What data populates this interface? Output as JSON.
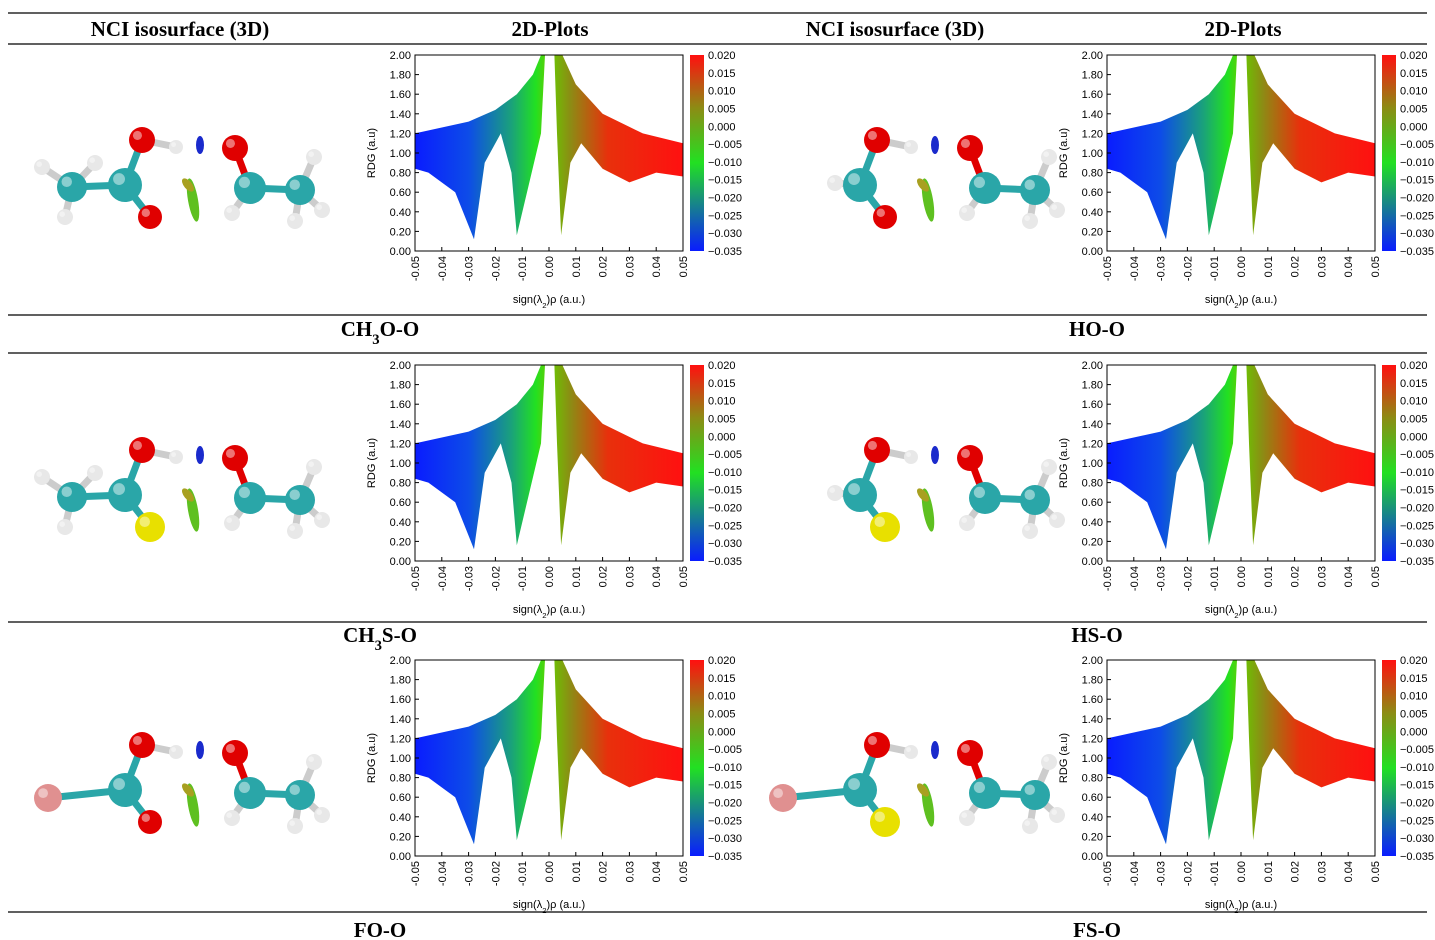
{
  "header": [
    "NCI isosurface (3D)",
    "2D-Plots",
    "NCI isosurface (3D)",
    "2D-Plots"
  ],
  "axes": {
    "ylabel": "RDG (a.u)",
    "xlabel": [
      {
        "text": "sign(λ"
      },
      {
        "text": "2",
        "sub": true
      },
      {
        "text": ")ρ (a.u.)"
      }
    ],
    "yticks": [
      "2.00",
      "1.80",
      "1.60",
      "1.40",
      "1.20",
      "1.00",
      "0.80",
      "0.60",
      "0.40",
      "0.20",
      "0.00"
    ],
    "xticks": [
      "-0.05",
      "-0.04",
      "-0.03",
      "-0.02",
      "-0.01",
      "0.00",
      "0.01",
      "0.02",
      "0.03",
      "0.04",
      "0.05"
    ],
    "colorbar_ticks": [
      "0.020",
      "0.015",
      "0.010",
      "0.005",
      "0.000",
      "−0.005",
      "−0.010",
      "−0.015",
      "−0.020",
      "−0.025",
      "−0.030",
      "−0.035"
    ]
  },
  "panels": [
    {
      "label": [
        {
          "text": "CH"
        },
        {
          "text": "3",
          "sub": true
        },
        {
          "text": "O-O"
        }
      ]
    },
    {
      "label": [
        {
          "text": "HO-O"
        }
      ]
    },
    {
      "label": [
        {
          "text": "CH"
        },
        {
          "text": "3",
          "sub": true
        },
        {
          "text": "S-O"
        }
      ]
    },
    {
      "label": [
        {
          "text": "HS-O"
        }
      ]
    },
    {
      "label": [
        {
          "text": "FO-O"
        }
      ]
    },
    {
      "label": [
        {
          "text": "FS-O"
        }
      ]
    }
  ]
}
